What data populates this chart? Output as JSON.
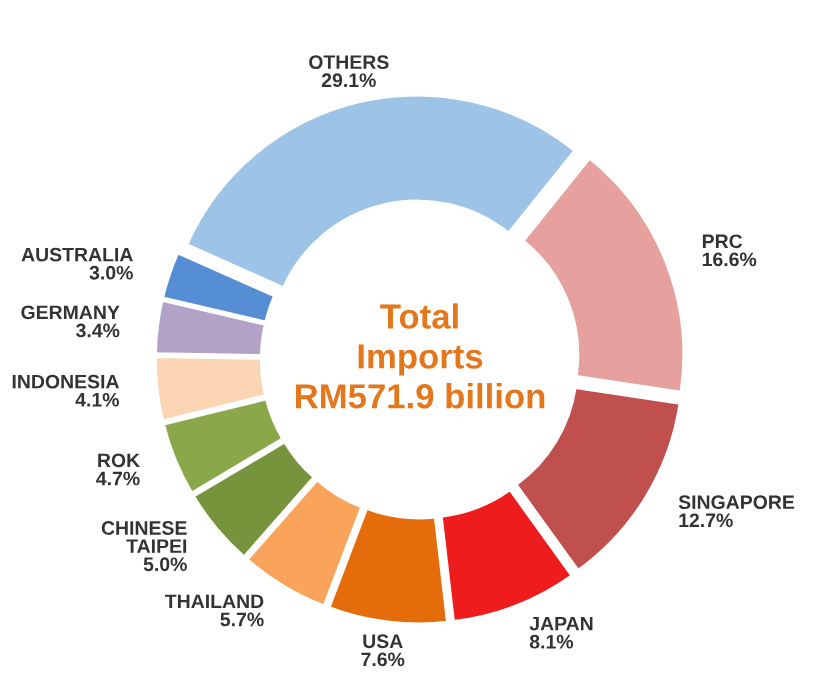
{
  "chart_data": {
    "type": "donut",
    "categories": [
      "OTHERS",
      "PRC",
      "SINGAPORE",
      "JAPAN",
      "USA",
      "THAILAND",
      "CHINESE\nTAIPEI",
      "ROK",
      "INDONESIA",
      "GERMANY",
      "AUSTRALIA"
    ],
    "values": [
      29.1,
      16.6,
      12.7,
      8.1,
      7.6,
      5.7,
      5.0,
      4.7,
      4.1,
      3.4,
      3.0
    ],
    "value_labels": [
      "29.1%",
      "16.6%",
      "12.7%",
      "8.1%",
      "7.6%",
      "5.7%",
      "5.0%",
      "4.7%",
      "4.1%",
      "3.4%",
      "3.0%"
    ],
    "colors": [
      "#9dc3e6",
      "#e6a09e",
      "#c0504d",
      "#ee1c1c",
      "#e46c0a",
      "#f9a45a",
      "#77933c",
      "#8aa84a",
      "#fcd5b5",
      "#b3a2c7",
      "#558ed5"
    ],
    "annotations": [
      "Total\nImports\nRM571.9 billion"
    ],
    "legend": false
  }
}
